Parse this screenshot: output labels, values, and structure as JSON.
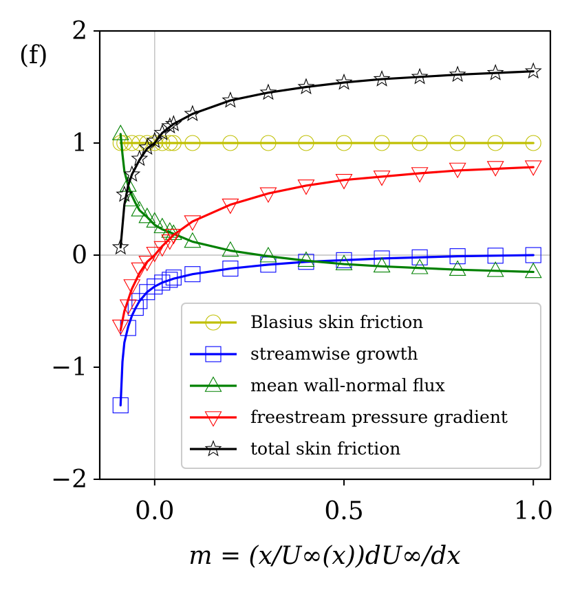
{
  "panel_label": "(f)",
  "chart_data": {
    "type": "line",
    "xlabel": "m = (x/U∞(x))dU∞/dx",
    "ylabel": "",
    "xlim": [
      -0.145,
      1.045
    ],
    "ylim": [
      -2,
      2
    ],
    "xticks": [
      0.0,
      0.5,
      1.0
    ],
    "xtick_labels": [
      "0.0",
      "0.5",
      "1.0"
    ],
    "yticks": [
      2,
      1,
      0,
      -1,
      -2
    ],
    "ytick_labels": [
      "2",
      "1",
      "0",
      "−1",
      "−2"
    ],
    "reference_lines": {
      "x": 0,
      "y": 0
    },
    "legend_position": "lower-right",
    "series": [
      {
        "name": "Blasius skin friction",
        "color": "#bfbf00",
        "marker": "circle",
        "curve": [
          [
            -0.09,
            1.0
          ],
          [
            1.0,
            1.0
          ]
        ],
        "markers": [
          [
            -0.09,
            1.0
          ],
          [
            -0.08,
            1.0
          ],
          [
            -0.06,
            1.0
          ],
          [
            -0.04,
            1.0
          ],
          [
            -0.02,
            1.0
          ],
          [
            0.0,
            1.0
          ],
          [
            0.02,
            1.0
          ],
          [
            0.04,
            1.0
          ],
          [
            0.05,
            1.0
          ],
          [
            0.1,
            1.0
          ],
          [
            0.2,
            1.0
          ],
          [
            0.3,
            1.0
          ],
          [
            0.4,
            1.0
          ],
          [
            0.5,
            1.0
          ],
          [
            0.6,
            1.0
          ],
          [
            0.7,
            1.0
          ],
          [
            0.8,
            1.0
          ],
          [
            0.9,
            1.0
          ],
          [
            1.0,
            1.0
          ]
        ]
      },
      {
        "name": "streamwise growth",
        "color": "#0000ff",
        "marker": "square",
        "curve": [
          [
            -0.09,
            -1.34
          ],
          [
            -0.085,
            -0.95
          ],
          [
            -0.08,
            -0.78
          ],
          [
            -0.07,
            -0.64
          ],
          [
            -0.06,
            -0.54
          ],
          [
            -0.05,
            -0.47
          ],
          [
            -0.04,
            -0.41
          ],
          [
            -0.02,
            -0.33
          ],
          [
            0.0,
            -0.28
          ],
          [
            0.02,
            -0.245
          ],
          [
            0.05,
            -0.21
          ],
          [
            0.1,
            -0.17
          ],
          [
            0.2,
            -0.12
          ],
          [
            0.3,
            -0.085
          ],
          [
            0.4,
            -0.06
          ],
          [
            0.5,
            -0.045
          ],
          [
            0.6,
            -0.03
          ],
          [
            0.7,
            -0.02
          ],
          [
            0.8,
            -0.01
          ],
          [
            0.9,
            -0.005
          ],
          [
            1.0,
            0.0
          ]
        ],
        "markers": [
          [
            -0.09,
            -1.34
          ],
          [
            -0.07,
            -0.65
          ],
          [
            -0.05,
            -0.47
          ],
          [
            -0.04,
            -0.41
          ],
          [
            -0.02,
            -0.33
          ],
          [
            0.0,
            -0.28
          ],
          [
            0.02,
            -0.245
          ],
          [
            0.04,
            -0.22
          ],
          [
            0.05,
            -0.2
          ],
          [
            0.1,
            -0.17
          ],
          [
            0.2,
            -0.12
          ],
          [
            0.3,
            -0.085
          ],
          [
            0.4,
            -0.06
          ],
          [
            0.5,
            -0.045
          ],
          [
            0.6,
            -0.03
          ],
          [
            0.7,
            -0.02
          ],
          [
            0.8,
            -0.01
          ],
          [
            0.9,
            -0.005
          ],
          [
            1.0,
            0.0
          ]
        ]
      },
      {
        "name": "mean wall-normal flux",
        "color": "#008000",
        "marker": "triangle-up",
        "curve": [
          [
            -0.09,
            1.08
          ],
          [
            -0.085,
            0.9
          ],
          [
            -0.08,
            0.75
          ],
          [
            -0.07,
            0.62
          ],
          [
            -0.06,
            0.53
          ],
          [
            -0.05,
            0.46
          ],
          [
            -0.04,
            0.4
          ],
          [
            -0.02,
            0.34
          ],
          [
            0.0,
            0.27
          ],
          [
            0.02,
            0.23
          ],
          [
            0.05,
            0.19
          ],
          [
            0.1,
            0.12
          ],
          [
            0.2,
            0.04
          ],
          [
            0.3,
            -0.01
          ],
          [
            0.4,
            -0.05
          ],
          [
            0.5,
            -0.08
          ],
          [
            0.6,
            -0.1
          ],
          [
            0.7,
            -0.115
          ],
          [
            0.8,
            -0.13
          ],
          [
            0.9,
            -0.14
          ],
          [
            1.0,
            -0.15
          ]
        ],
        "markers": [
          [
            -0.09,
            1.08
          ],
          [
            -0.07,
            0.62
          ],
          [
            -0.06,
            0.49
          ],
          [
            -0.04,
            0.4
          ],
          [
            -0.02,
            0.34
          ],
          [
            0.0,
            0.3
          ],
          [
            0.02,
            0.25
          ],
          [
            0.04,
            0.21
          ],
          [
            0.05,
            0.19
          ],
          [
            0.1,
            0.12
          ],
          [
            0.2,
            0.04
          ],
          [
            0.3,
            -0.01
          ],
          [
            0.4,
            -0.05
          ],
          [
            0.5,
            -0.08
          ],
          [
            0.6,
            -0.1
          ],
          [
            0.7,
            -0.115
          ],
          [
            0.8,
            -0.13
          ],
          [
            0.9,
            -0.14
          ],
          [
            1.0,
            -0.15
          ]
        ]
      },
      {
        "name": "freestream pressure gradient",
        "color": "#ff0000",
        "marker": "triangle-down",
        "curve": [
          [
            -0.09,
            -0.67
          ],
          [
            -0.08,
            -0.5
          ],
          [
            -0.07,
            -0.4
          ],
          [
            -0.06,
            -0.3
          ],
          [
            -0.04,
            -0.16
          ],
          [
            -0.02,
            -0.06
          ],
          [
            0.0,
            0.0
          ],
          [
            0.02,
            0.08
          ],
          [
            0.05,
            0.18
          ],
          [
            0.1,
            0.3
          ],
          [
            0.2,
            0.45
          ],
          [
            0.3,
            0.55
          ],
          [
            0.4,
            0.62
          ],
          [
            0.5,
            0.67
          ],
          [
            0.6,
            0.7
          ],
          [
            0.7,
            0.73
          ],
          [
            0.8,
            0.755
          ],
          [
            0.9,
            0.77
          ],
          [
            1.0,
            0.785
          ]
        ],
        "markers": [
          [
            -0.09,
            -0.63
          ],
          [
            -0.07,
            -0.45
          ],
          [
            -0.06,
            -0.27
          ],
          [
            -0.04,
            -0.12
          ],
          [
            -0.02,
            -0.06
          ],
          [
            0.0,
            0.02
          ],
          [
            0.02,
            0.07
          ],
          [
            0.04,
            0.13
          ],
          [
            0.05,
            0.18
          ],
          [
            0.1,
            0.3
          ],
          [
            0.2,
            0.45
          ],
          [
            0.3,
            0.55
          ],
          [
            0.4,
            0.62
          ],
          [
            0.5,
            0.67
          ],
          [
            0.6,
            0.7
          ],
          [
            0.7,
            0.73
          ],
          [
            0.8,
            0.77
          ],
          [
            0.9,
            0.785
          ],
          [
            1.0,
            0.79
          ]
        ]
      },
      {
        "name": "total skin friction",
        "color": "#000000",
        "marker": "star",
        "curve": [
          [
            -0.09,
            0.07
          ],
          [
            -0.08,
            0.45
          ],
          [
            -0.07,
            0.62
          ],
          [
            -0.06,
            0.72
          ],
          [
            -0.04,
            0.85
          ],
          [
            -0.02,
            0.95
          ],
          [
            0.0,
            1.0
          ],
          [
            0.02,
            1.09
          ],
          [
            0.05,
            1.17
          ],
          [
            0.1,
            1.26
          ],
          [
            0.2,
            1.38
          ],
          [
            0.3,
            1.45
          ],
          [
            0.4,
            1.5
          ],
          [
            0.5,
            1.54
          ],
          [
            0.6,
            1.57
          ],
          [
            0.7,
            1.59
          ],
          [
            0.8,
            1.61
          ],
          [
            0.9,
            1.625
          ],
          [
            1.0,
            1.64
          ]
        ],
        "markers": [
          [
            -0.09,
            0.07
          ],
          [
            -0.08,
            0.54
          ],
          [
            -0.06,
            0.72
          ],
          [
            -0.04,
            0.86
          ],
          [
            -0.02,
            0.96
          ],
          [
            0.0,
            1.02
          ],
          [
            0.02,
            1.09
          ],
          [
            0.04,
            1.15
          ],
          [
            0.05,
            1.17
          ],
          [
            0.1,
            1.26
          ],
          [
            0.2,
            1.38
          ],
          [
            0.3,
            1.45
          ],
          [
            0.4,
            1.5
          ],
          [
            0.5,
            1.54
          ],
          [
            0.6,
            1.57
          ],
          [
            0.7,
            1.59
          ],
          [
            0.8,
            1.61
          ],
          [
            0.9,
            1.625
          ],
          [
            1.0,
            1.64
          ]
        ]
      }
    ]
  }
}
